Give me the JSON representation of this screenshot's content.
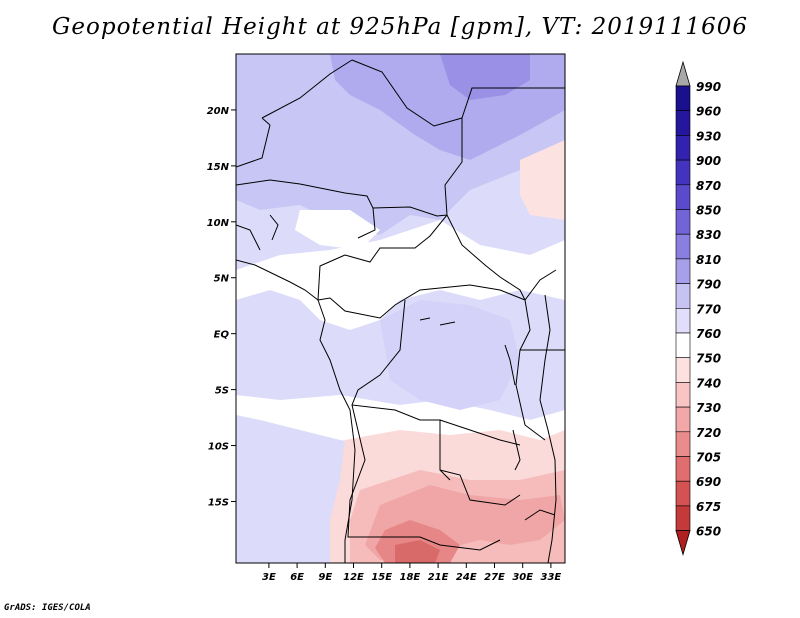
{
  "chart_data": {
    "type": "heatmap",
    "title": "Geopotential Height at 925hPa [gpm], VT: 2019111606",
    "xlabel": "",
    "ylabel": "",
    "xlim": [
      -0.5,
      34.5
    ],
    "ylim": [
      -20.5,
      25
    ],
    "x_ticks": [
      3,
      6,
      9,
      12,
      15,
      18,
      21,
      24,
      27,
      30,
      33
    ],
    "x_tick_labels": [
      "3E",
      "6E",
      "9E",
      "12E",
      "15E",
      "18E",
      "21E",
      "24E",
      "27E",
      "30E",
      "33E"
    ],
    "y_ticks": [
      20,
      15,
      10,
      5,
      0,
      -5,
      -10,
      -15
    ],
    "y_tick_labels": [
      "20N",
      "15N",
      "10N",
      "5N",
      "EQ",
      "5S",
      "10S",
      "15S"
    ],
    "colorbar": {
      "levels": [
        "990",
        "960",
        "930",
        "900",
        "870",
        "850",
        "830",
        "810",
        "790",
        "770",
        "760",
        "750",
        "740",
        "730",
        "720",
        "705",
        "690",
        "675",
        "650"
      ],
      "colors": [
        "#1a0f8c",
        "#25169e",
        "#3322b0",
        "#4433bf",
        "#5b4bcc",
        "#7263d6",
        "#8a7ee0",
        "#a89fea",
        "#c6c2f2",
        "#e0defa",
        "#ffffff",
        "#fde0e0",
        "#f8c4c4",
        "#f2a8a8",
        "#eb8c8c",
        "#e06e6e",
        "#d45252",
        "#c43a3a",
        "#b02020"
      ]
    }
  },
  "credit": "GrADS: IGES/COLA"
}
